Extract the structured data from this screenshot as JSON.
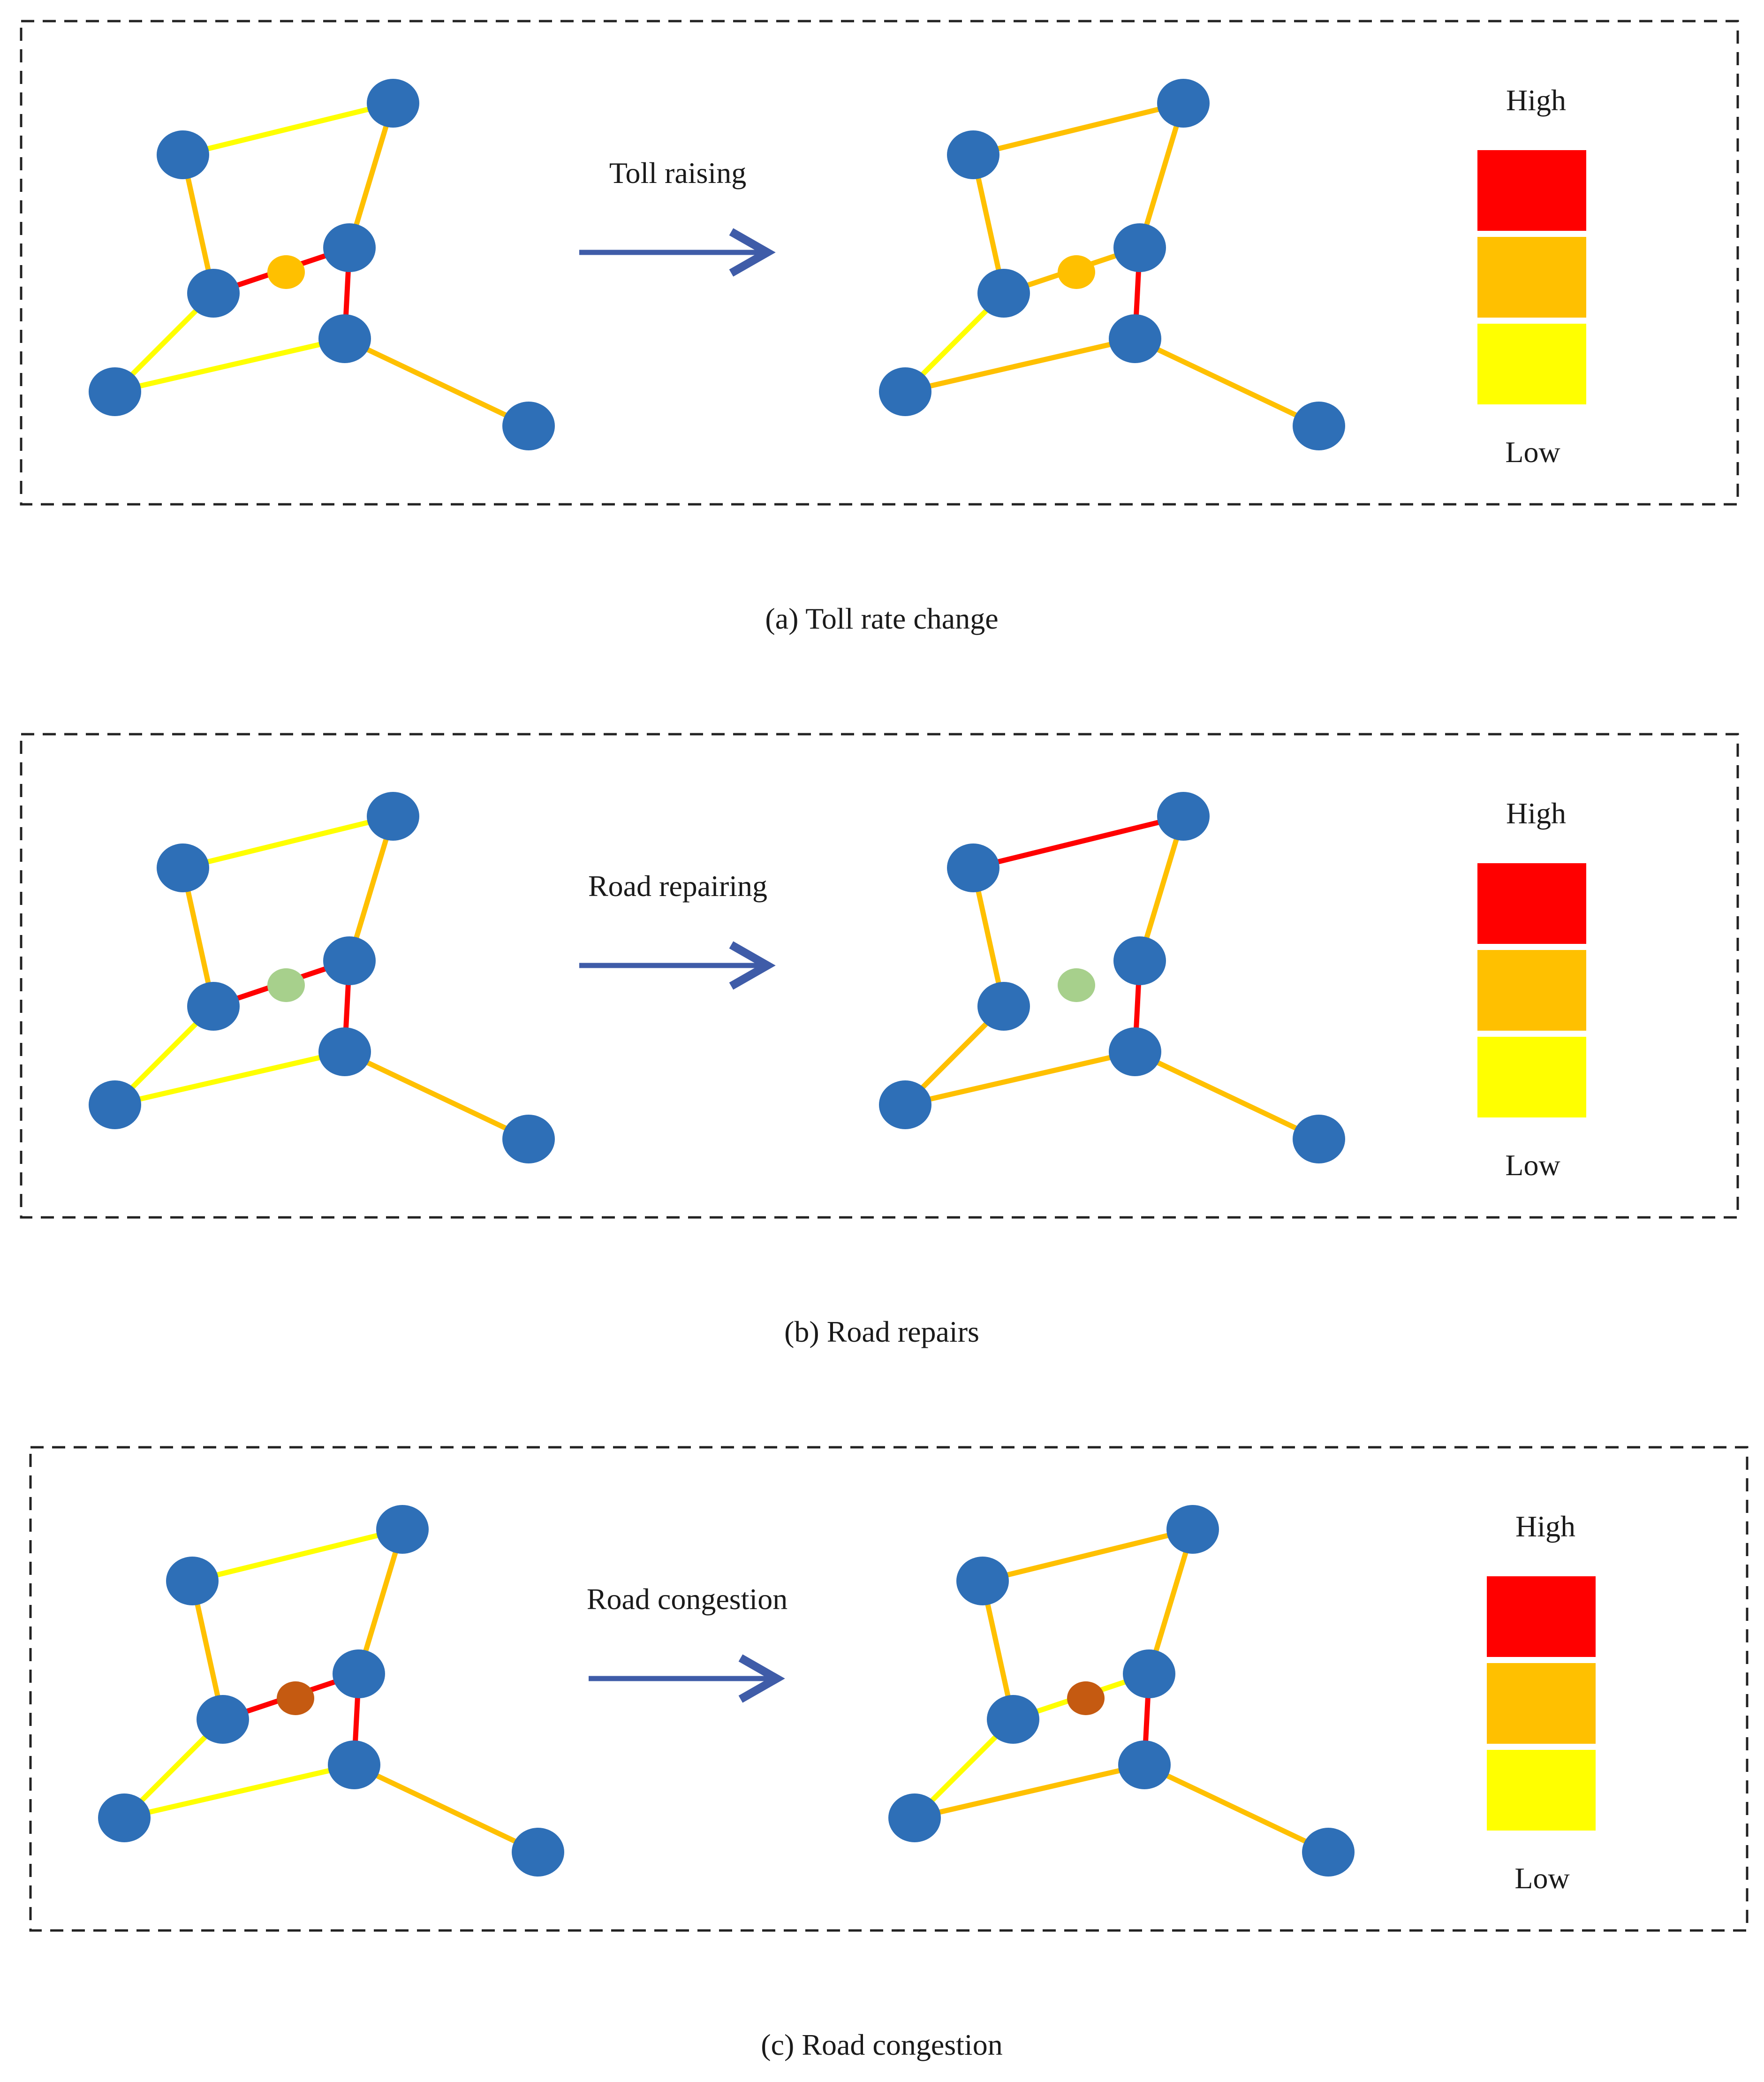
{
  "colors": {
    "node": "#2E6FB7",
    "high": "#FF0000",
    "medium": "#FFC000",
    "low": "#FFFF00",
    "arrow": "#3F5CA8",
    "border": "#222222",
    "toll_green": "#A7D08C",
    "congestion_brown": "#C55A11"
  },
  "legend": {
    "high_label": "High",
    "low_label": "Low"
  },
  "panels": [
    {
      "id": "a",
      "action_label": "Toll raising",
      "caption": "(a) Toll rate change",
      "before": {
        "edges": {
          "top": "low",
          "left_upper": "medium",
          "right_upper": "medium",
          "mid_bar": "high",
          "vertical": "high",
          "left_lower": "low",
          "bottom": "low",
          "tail": "medium"
        },
        "mid_node_color": "medium",
        "mid_node_present": true
      },
      "after": {
        "edges": {
          "top": "medium",
          "left_upper": "medium",
          "right_upper": "medium",
          "mid_bar": "medium",
          "vertical": "high",
          "left_lower": "low",
          "bottom": "medium",
          "tail": "medium"
        },
        "mid_node_color": "medium",
        "mid_node_present": true
      }
    },
    {
      "id": "b",
      "action_label": "Road repairing",
      "caption": "(b) Road repairs",
      "before": {
        "edges": {
          "top": "low",
          "left_upper": "medium",
          "right_upper": "medium",
          "mid_bar": "high",
          "vertical": "high",
          "left_lower": "low",
          "bottom": "low",
          "tail": "medium"
        },
        "mid_node_color": "toll_green",
        "mid_node_present": true
      },
      "after": {
        "edges": {
          "top": "high",
          "left_upper": "medium",
          "right_upper": "medium",
          "mid_bar": "none",
          "vertical": "high",
          "left_lower": "medium",
          "bottom": "medium",
          "tail": "medium"
        },
        "mid_node_color": "toll_green",
        "mid_node_present": true
      }
    },
    {
      "id": "c",
      "action_label": "Road congestion",
      "caption": "(c) Road congestion",
      "before": {
        "edges": {
          "top": "low",
          "left_upper": "medium",
          "right_upper": "medium",
          "mid_bar": "high",
          "vertical": "high",
          "left_lower": "low",
          "bottom": "low",
          "tail": "medium"
        },
        "mid_node_color": "congestion_brown",
        "mid_node_present": true
      },
      "after": {
        "edges": {
          "top": "medium",
          "left_upper": "medium",
          "right_upper": "medium",
          "mid_bar": "low",
          "vertical": "high",
          "left_lower": "low",
          "bottom": "medium",
          "tail": "medium"
        },
        "mid_node_color": "congestion_brown",
        "mid_node_present": true
      }
    }
  ]
}
